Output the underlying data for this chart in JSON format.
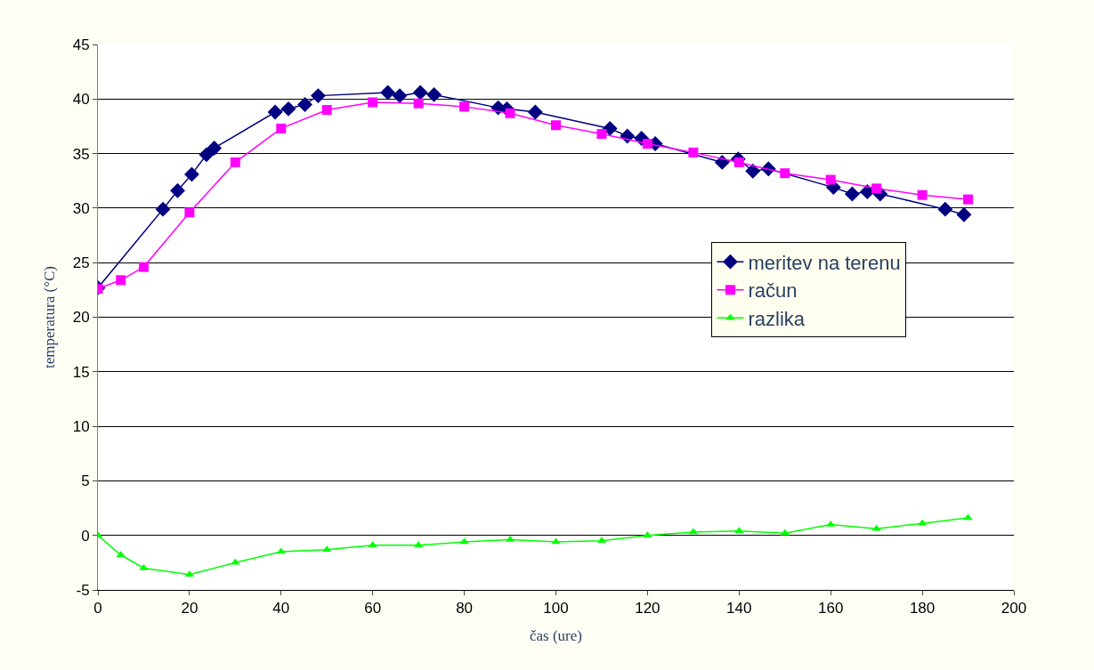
{
  "chart_data": {
    "type": "line",
    "xlabel": "čas (ure)",
    "ylabel": "temperatura (°C)",
    "xlim": [
      0,
      200
    ],
    "xticks": [
      0,
      20,
      40,
      60,
      80,
      100,
      120,
      140,
      160,
      180,
      200
    ],
    "ylim": [
      -5,
      45
    ],
    "yticks": [
      -5,
      0,
      5,
      10,
      15,
      20,
      25,
      30,
      35,
      40,
      45
    ],
    "grid": "y",
    "legend": "right",
    "series": [
      {
        "name": "meritev na terenu",
        "color": "#000080",
        "marker": "diamond",
        "x": [
          0,
          14.2,
          17.4,
          20.5,
          23.7,
          25.4,
          38.7,
          41.6,
          45.2,
          48.1,
          63.3,
          65.9,
          70.4,
          73.4,
          87.4,
          89.3,
          95.5,
          111.8,
          115.6,
          118.7,
          121.7,
          136.3,
          139.8,
          143,
          146.4,
          160.6,
          164.7,
          168,
          170.8,
          185,
          189.1
        ],
        "values": [
          22.7,
          29.9,
          31.6,
          33.1,
          34.9,
          35.5,
          38.8,
          39.1,
          39.5,
          40.3,
          40.6,
          40.3,
          40.6,
          40.4,
          39.2,
          39.1,
          38.8,
          37.3,
          36.6,
          36.4,
          35.9,
          34.2,
          34.5,
          33.4,
          33.6,
          31.9,
          31.3,
          31.5,
          31.3,
          29.9,
          29.4
        ]
      },
      {
        "name": "račun",
        "color": "#ff00ff",
        "marker": "square",
        "x": [
          0,
          5,
          10,
          20,
          30,
          40,
          50,
          60,
          70,
          80,
          90,
          100,
          110,
          120,
          130,
          140,
          150,
          160,
          170,
          180,
          190
        ],
        "values": [
          22.6,
          23.4,
          24.6,
          29.6,
          34.2,
          37.3,
          39.0,
          39.7,
          39.6,
          39.3,
          38.7,
          37.6,
          36.8,
          35.9,
          35.1,
          34.2,
          33.2,
          32.6,
          31.8,
          31.2,
          30.8
        ]
      },
      {
        "name": "razlika",
        "color": "#00ff00",
        "marker": "triangle",
        "x": [
          0,
          5,
          10,
          20,
          30,
          40,
          50,
          60,
          70,
          80,
          90,
          100,
          110,
          120,
          130,
          140,
          150,
          160,
          170,
          180,
          190
        ],
        "values": [
          0,
          -1.8,
          -3,
          -3.6,
          -2.5,
          -1.5,
          -1.3,
          -0.9,
          -0.9,
          -0.6,
          -0.4,
          -0.6,
          -0.5,
          0,
          0.3,
          0.4,
          0.2,
          1.0,
          0.6,
          1.1,
          1.6
        ]
      }
    ]
  }
}
